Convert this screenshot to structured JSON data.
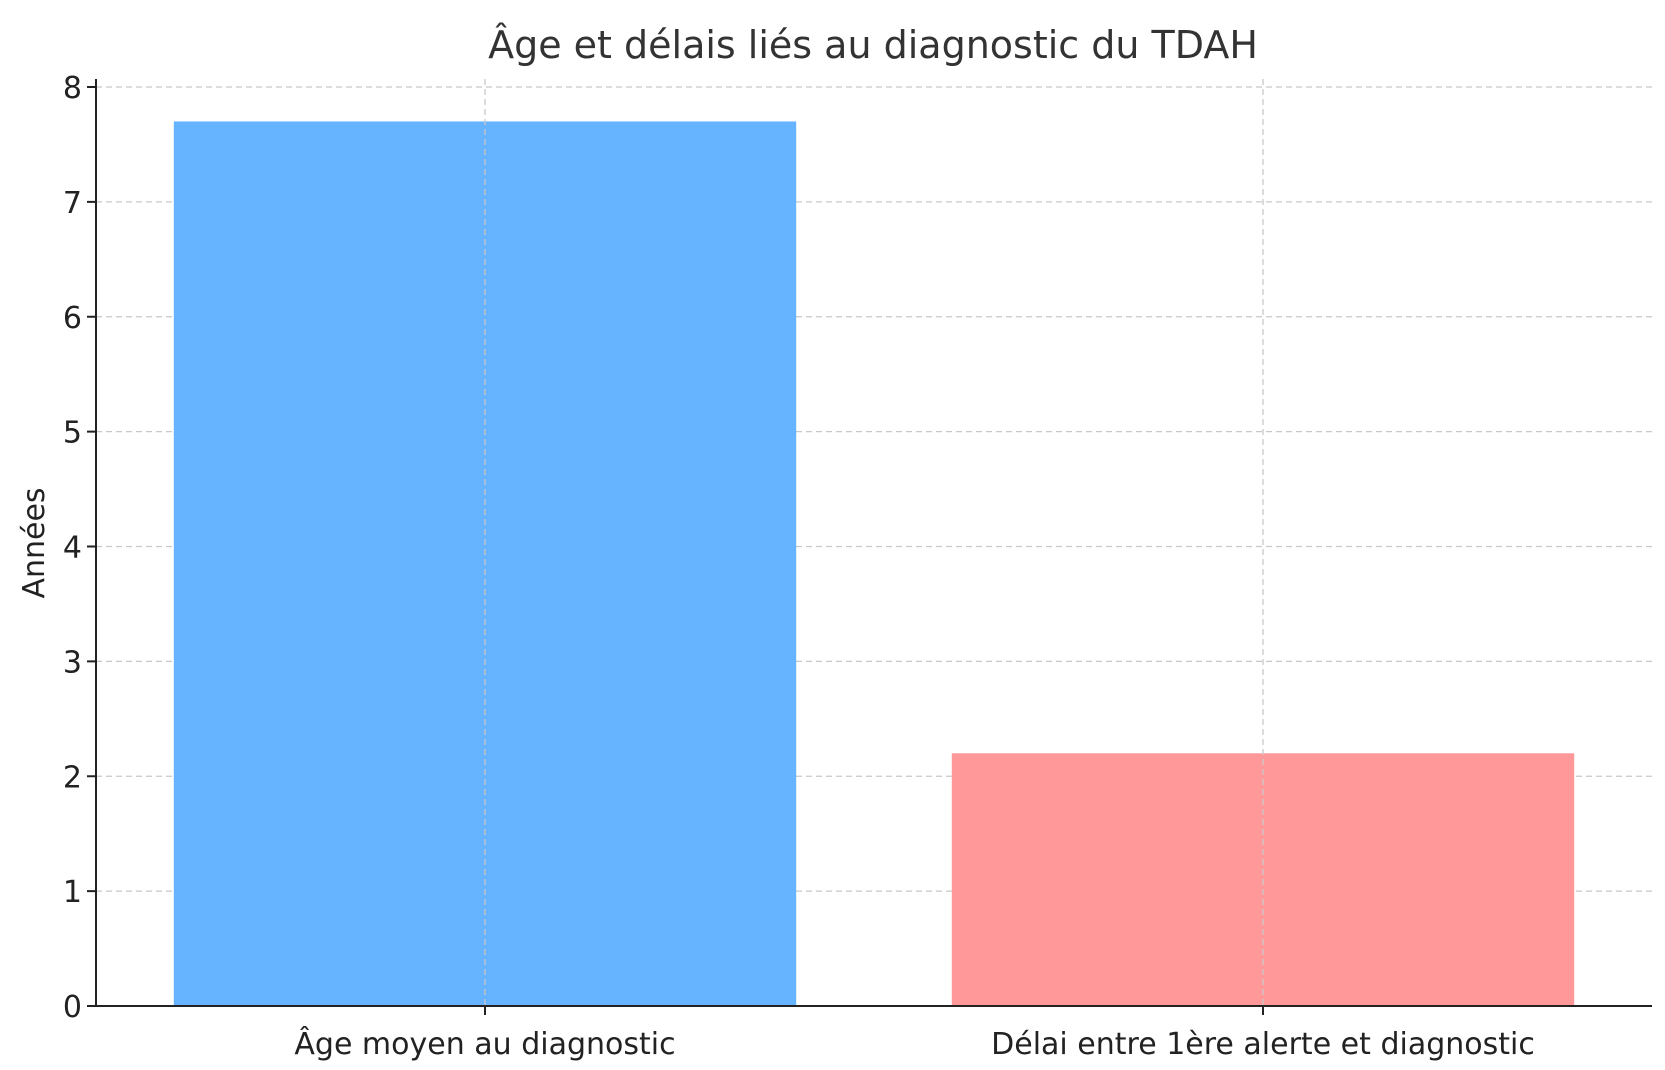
{
  "chart_data": {
    "type": "bar",
    "title": "Âge et délais liés au diagnostic du TDAH",
    "xlabel": "",
    "ylabel": "Années",
    "categories": [
      "Âge moyen au diagnostic",
      "Délai entre 1ère alerte et diagnostic"
    ],
    "values": [
      7.7,
      2.2
    ],
    "colors": [
      "#66b3ff",
      "#ff9999"
    ],
    "ylim": [
      0,
      8
    ],
    "yticks": [
      0,
      1,
      2,
      3,
      4,
      5,
      6,
      7,
      8
    ],
    "grid": true,
    "legend": "none"
  }
}
